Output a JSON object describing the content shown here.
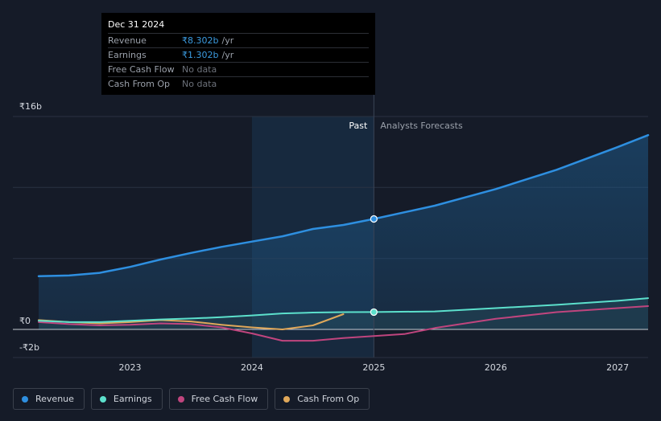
{
  "tooltip": {
    "date": "Dec 31 2024",
    "rows": [
      {
        "label": "Revenue",
        "value": "₹8.302b",
        "unit": "/yr"
      },
      {
        "label": "Earnings",
        "value": "₹1.302b",
        "unit": "/yr"
      },
      {
        "label": "Free Cash Flow",
        "value": "No data"
      },
      {
        "label": "Cash From Op",
        "value": "No data"
      }
    ]
  },
  "colors": {
    "revenue": "#2e8fe0",
    "earnings": "#5ce0cc",
    "fcf": "#c0457e",
    "cfo": "#e0a85a",
    "background": "#151b28",
    "past_shade": "#1a3550"
  },
  "chart_data": {
    "type": "line",
    "title": "",
    "y_tick_labels": [
      "₹16b",
      "₹0",
      "-₹2b"
    ],
    "ylim": [
      -2,
      16
    ],
    "xlim": [
      2022.25,
      2027.25
    ],
    "x_tick_labels": [
      "2023",
      "2024",
      "2025",
      "2026",
      "2027"
    ],
    "x_tick_values": [
      2023,
      2024,
      2025,
      2026,
      2027
    ],
    "divider_x": 2025.0,
    "highlight_start_x": 2024.0,
    "past_label": "Past",
    "forecast_label": "Analysts Forecasts",
    "series": [
      {
        "name": "Revenue",
        "key": "revenue",
        "points": [
          [
            2022.25,
            4.0
          ],
          [
            2022.5,
            4.05
          ],
          [
            2022.75,
            4.25
          ],
          [
            2023.0,
            4.7
          ],
          [
            2023.25,
            5.25
          ],
          [
            2023.5,
            5.75
          ],
          [
            2023.75,
            6.2
          ],
          [
            2024.0,
            6.6
          ],
          [
            2024.25,
            7.0
          ],
          [
            2024.5,
            7.55
          ],
          [
            2024.75,
            7.85
          ],
          [
            2025.0,
            8.302
          ],
          [
            2025.5,
            9.3
          ],
          [
            2026.0,
            10.55
          ],
          [
            2026.5,
            12.0
          ],
          [
            2027.0,
            13.7
          ],
          [
            2027.25,
            14.6
          ]
        ],
        "marker_x": 2025.0,
        "marker_y": 8.302
      },
      {
        "name": "Earnings",
        "key": "earnings",
        "points": [
          [
            2022.25,
            0.65
          ],
          [
            2022.5,
            0.55
          ],
          [
            2022.75,
            0.55
          ],
          [
            2023.0,
            0.65
          ],
          [
            2023.25,
            0.75
          ],
          [
            2023.5,
            0.82
          ],
          [
            2023.75,
            0.92
          ],
          [
            2024.0,
            1.05
          ],
          [
            2024.25,
            1.2
          ],
          [
            2024.5,
            1.27
          ],
          [
            2024.75,
            1.3
          ],
          [
            2025.0,
            1.302
          ],
          [
            2025.5,
            1.35
          ],
          [
            2026.0,
            1.6
          ],
          [
            2026.5,
            1.85
          ],
          [
            2027.0,
            2.15
          ],
          [
            2027.25,
            2.35
          ]
        ],
        "marker_x": 2025.0,
        "marker_y": 1.302
      },
      {
        "name": "Free Cash Flow",
        "key": "fcf",
        "points": [
          [
            2022.25,
            0.55
          ],
          [
            2022.5,
            0.4
          ],
          [
            2022.75,
            0.3
          ],
          [
            2023.0,
            0.35
          ],
          [
            2023.25,
            0.45
          ],
          [
            2023.5,
            0.4
          ],
          [
            2023.75,
            0.15
          ],
          [
            2024.0,
            -0.3
          ],
          [
            2024.25,
            -0.85
          ],
          [
            2024.5,
            -0.85
          ],
          [
            2024.75,
            -0.65
          ],
          [
            2025.0,
            -0.5
          ],
          [
            2025.25,
            -0.35
          ],
          [
            2025.5,
            0.1
          ],
          [
            2026.0,
            0.8
          ],
          [
            2026.5,
            1.3
          ],
          [
            2027.0,
            1.6
          ],
          [
            2027.25,
            1.75
          ]
        ]
      },
      {
        "name": "Cash From Op",
        "key": "cfo",
        "points": [
          [
            2022.25,
            0.7
          ],
          [
            2022.5,
            0.55
          ],
          [
            2022.75,
            0.45
          ],
          [
            2023.0,
            0.55
          ],
          [
            2023.25,
            0.7
          ],
          [
            2023.5,
            0.6
          ],
          [
            2023.75,
            0.35
          ],
          [
            2024.0,
            0.15
          ],
          [
            2024.25,
            0.0
          ],
          [
            2024.5,
            0.3
          ],
          [
            2024.75,
            1.15
          ]
        ]
      }
    ]
  },
  "legend": [
    {
      "label": "Revenue",
      "key": "revenue"
    },
    {
      "label": "Earnings",
      "key": "earnings"
    },
    {
      "label": "Free Cash Flow",
      "key": "fcf"
    },
    {
      "label": "Cash From Op",
      "key": "cfo"
    }
  ]
}
